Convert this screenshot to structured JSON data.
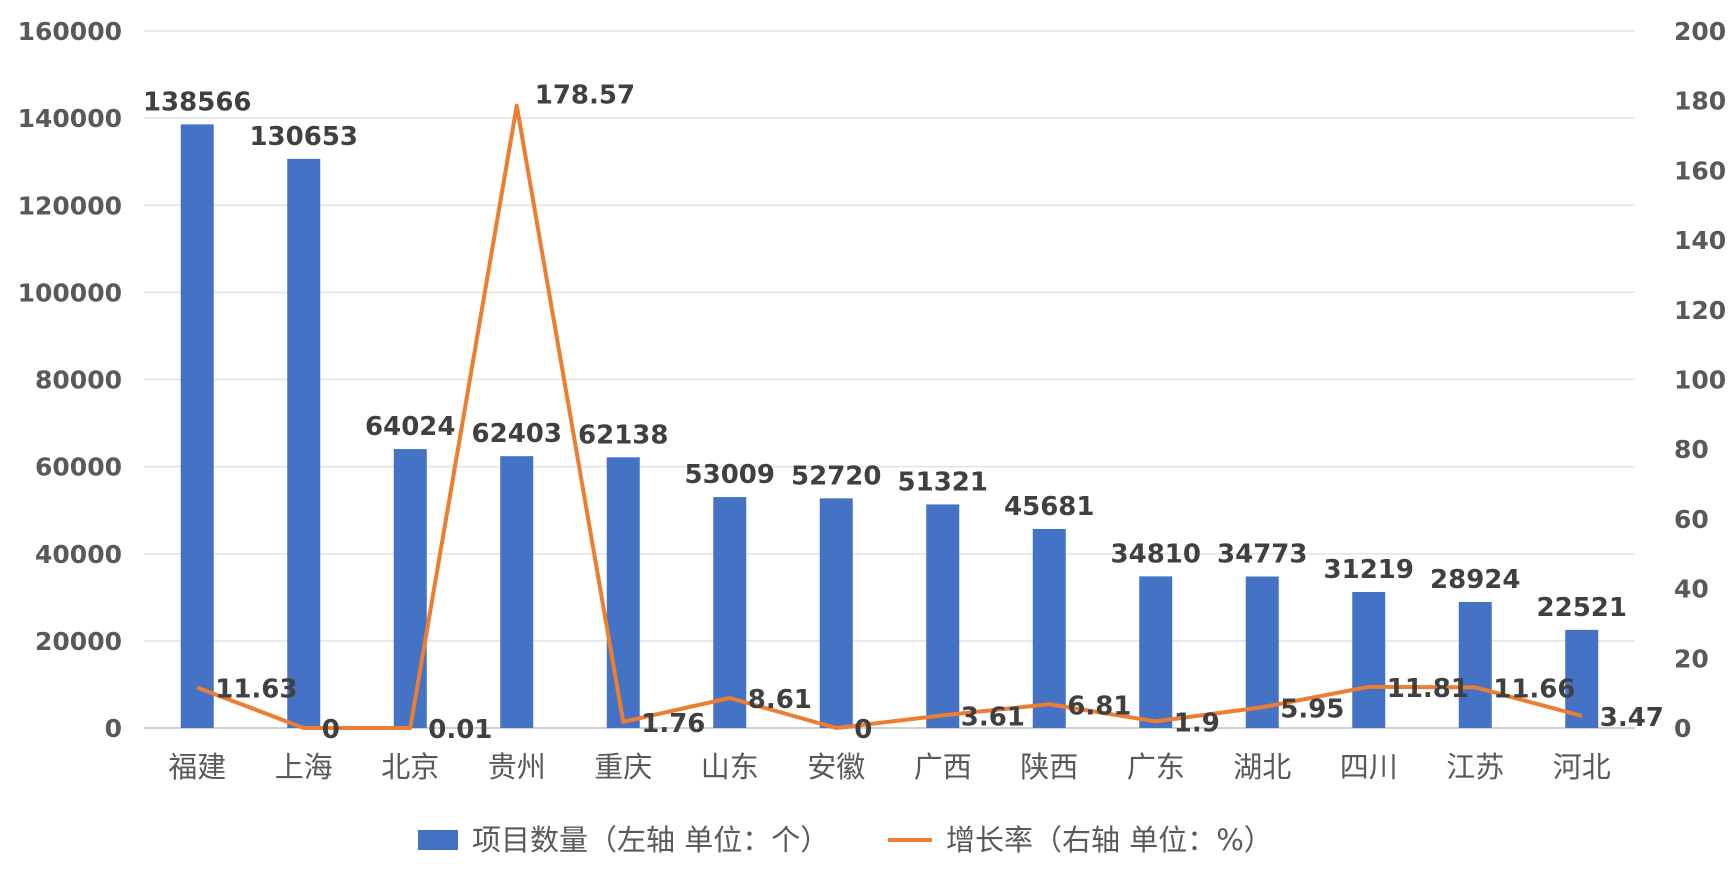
{
  "chart_data": {
    "type": "bar+line",
    "categories": [
      "福建",
      "上海",
      "北京",
      "贵州",
      "重庆",
      "山东",
      "安徽",
      "广西",
      "陕西",
      "广东",
      "湖北",
      "四川",
      "江苏",
      "河北"
    ],
    "series": [
      {
        "name": "项目数量（左轴 单位：个）",
        "type": "bar",
        "axis": "left",
        "color": "#4472C4",
        "values": [
          138566,
          130653,
          64024,
          62403,
          62138,
          53009,
          52720,
          51321,
          45681,
          34810,
          34773,
          31219,
          28924,
          22521
        ]
      },
      {
        "name": "增长率（右轴 单位：%）",
        "type": "line",
        "axis": "right",
        "color": "#ED7D31",
        "values": [
          11.63,
          0,
          0.01,
          178.57,
          1.76,
          8.61,
          0,
          3.61,
          6.81,
          1.9,
          5.95,
          11.81,
          11.66,
          3.47
        ]
      }
    ],
    "left_axis": {
      "range": [
        0,
        160000
      ],
      "ticks": [
        0,
        20000,
        40000,
        60000,
        80000,
        100000,
        120000,
        140000,
        160000
      ]
    },
    "right_axis": {
      "range": [
        0,
        200
      ],
      "ticks": [
        0,
        20,
        40,
        60,
        80,
        100,
        120,
        140,
        160,
        180,
        200
      ]
    },
    "grid": true,
    "legend": "bottom"
  }
}
